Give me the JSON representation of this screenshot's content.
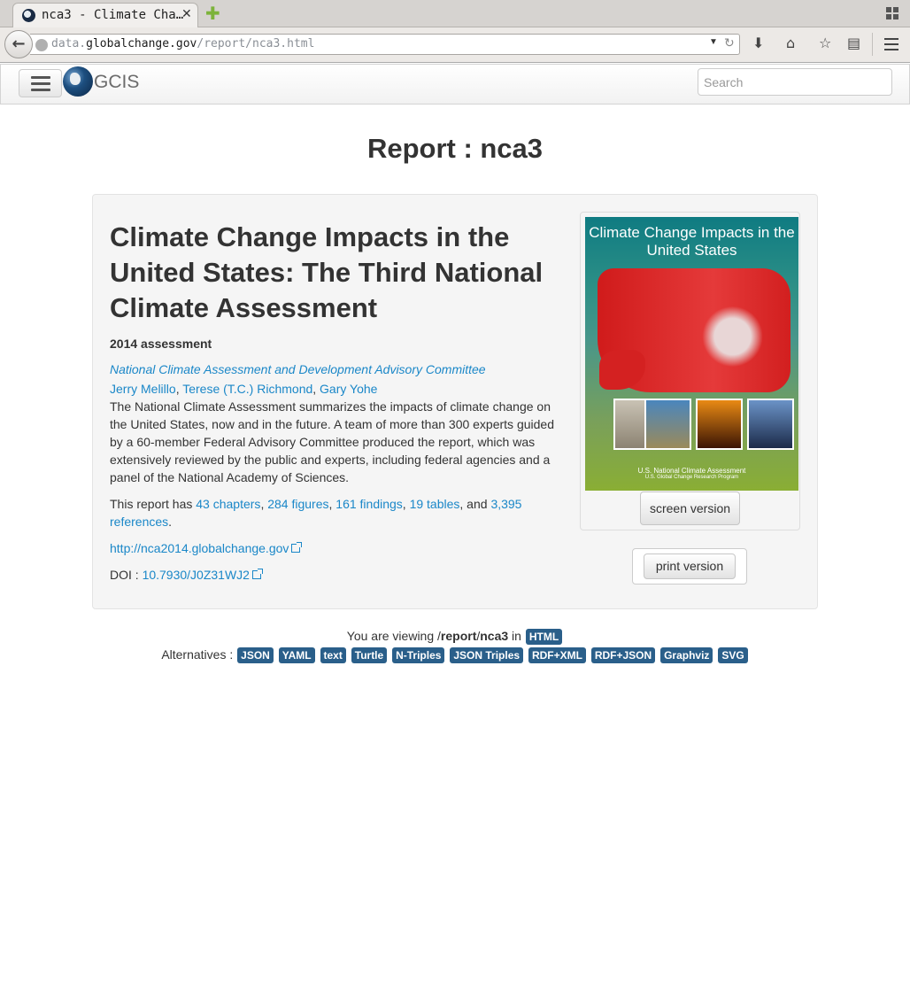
{
  "browser": {
    "tab_title": "nca3 - Climate Cha…",
    "url_host_prefix": "data.",
    "url_host": "globalchange.gov",
    "url_path": "/report/nca3.html"
  },
  "site": {
    "logo_text": "GCIS",
    "search_placeholder": "Search"
  },
  "page": {
    "title": "Report : nca3"
  },
  "report": {
    "title": "Climate Change Impacts in the United States: The Third National Climate Assessment",
    "assessment": "2014 assessment",
    "organization": "National Climate Assessment and Development Advisory Committee",
    "authors": [
      "Jerry Melillo",
      "Terese (T.C.) Richmond",
      "Gary Yohe"
    ],
    "summary": "The National Climate Assessment summarizes the impacts of climate change on the United States, now and in the future. A team of more than 300 experts guided by a 60-member Federal Advisory Committee produced the report, which was extensively reviewed by the public and experts, including federal agencies and a panel of the National Academy of Sciences.",
    "counts_prefix": "This report has",
    "chapters": "43 chapters",
    "figures": "284 figures",
    "findings": "161 findings",
    "tables": "19 tables",
    "and": ", and",
    "references": "3,395 references",
    "website": "http://nca2014.globalchange.gov",
    "doi_label": "DOI :",
    "doi": "10.7930/J0Z31WJ2"
  },
  "cover": {
    "title": "Climate Change Impacts in the United States",
    "footer_main": "U.S. National Climate Assessment",
    "footer_sub": "U.S. Global Change Research Program"
  },
  "buttons": {
    "screen_version": "screen version",
    "print_version": "print version"
  },
  "footer": {
    "viewing_prefix": "You are viewing /",
    "viewing_report": "report",
    "viewing_slash": "/",
    "viewing_id": "nca3",
    "viewing_in": " in ",
    "current_format": "HTML",
    "alternatives_label": "Alternatives :",
    "formats": [
      "JSON",
      "YAML",
      "text",
      "Turtle",
      "N-Triples",
      "JSON Triples",
      "RDF+XML",
      "RDF+JSON",
      "Graphviz",
      "SVG"
    ]
  }
}
